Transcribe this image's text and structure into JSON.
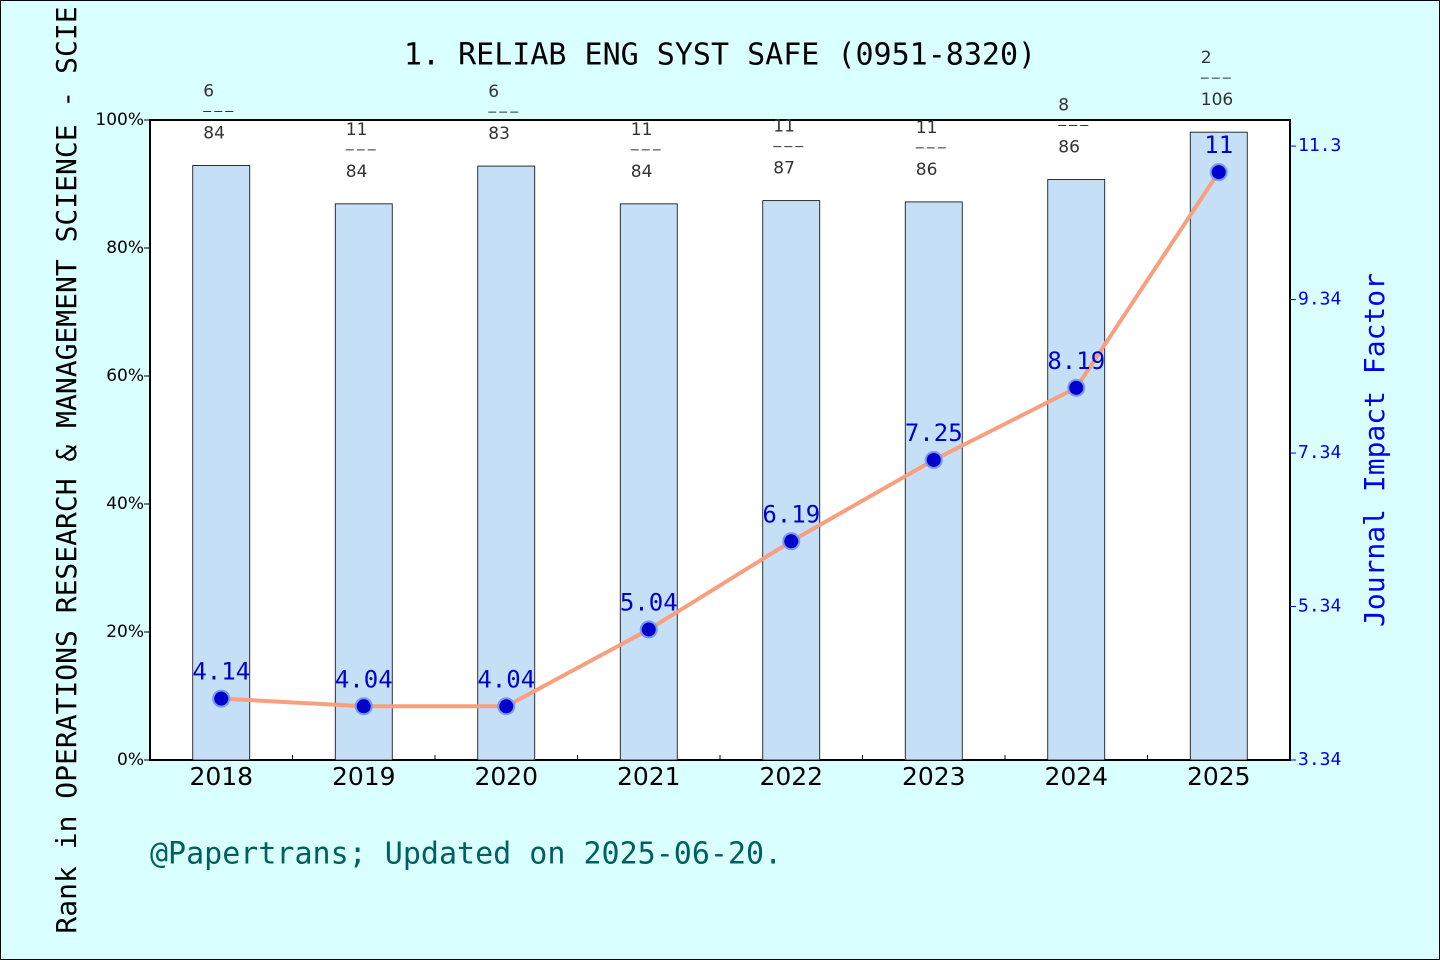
{
  "chart_data": {
    "type": "bar_line",
    "title": "1. RELIAB ENG SYST SAFE (0951-8320)",
    "y_label": "Rank in OPERATIONS RESEARCH & MANAGEMENT SCIENCE - SCIE",
    "y2_label": "Journal Impact Factor",
    "footer": "@Papertrans; Updated on 2025-06-20.",
    "categories": [
      "2018",
      "2019",
      "2020",
      "2021",
      "2022",
      "2023",
      "2024",
      "2025"
    ],
    "series": [
      {
        "type": "bar",
        "color": "#c5dff7",
        "values": [
          92.9,
          86.9,
          92.8,
          86.9,
          87.4,
          87.2,
          90.7,
          98.1
        ],
        "ranks": [
          6,
          11,
          6,
          11,
          11,
          11,
          8,
          2
        ],
        "totals": [
          84,
          84,
          83,
          84,
          87,
          86,
          86,
          106
        ]
      },
      {
        "type": "line",
        "axis": "y2",
        "color": "#f79f7f",
        "marker_color": "#0000cc",
        "values": [
          4.14,
          4.04,
          4.04,
          5.04,
          6.19,
          7.25,
          8.19,
          11
        ]
      }
    ],
    "ylim": [
      0,
      100
    ],
    "yticks": [
      {
        "value": 0,
        "label": "0%"
      },
      {
        "value": 20,
        "label": "20%"
      },
      {
        "value": 40,
        "label": "40%"
      },
      {
        "value": 60,
        "label": "60%"
      },
      {
        "value": 80,
        "label": "80%"
      },
      {
        "value": 100,
        "label": "100%"
      }
    ],
    "y2lim": [
      3.34,
      11.68
    ],
    "y2ticks": [
      3.34,
      5.34,
      7.34,
      9.34,
      {
        "value": 11.34,
        "label": "11.3"
      }
    ]
  }
}
